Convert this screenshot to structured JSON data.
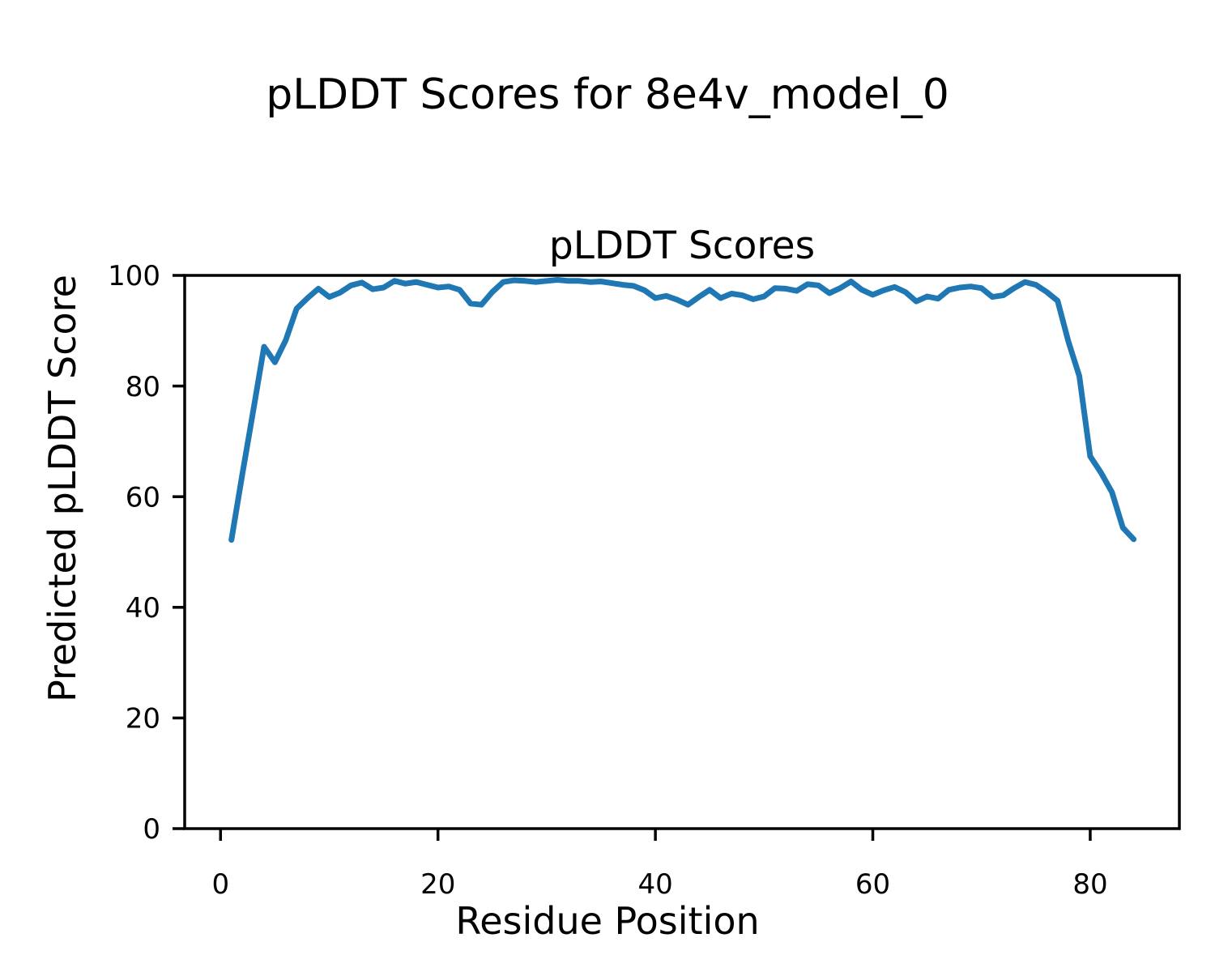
{
  "figure": {
    "suptitle": "pLDDT Scores for 8e4v_model_0"
  },
  "chart_data": {
    "type": "line",
    "title": "pLDDT Scores",
    "xlabel": "Residue Position",
    "ylabel": "Predicted pLDDT Score",
    "xlim": [
      -3.3,
      88.2
    ],
    "ylim": [
      0,
      100
    ],
    "x_ticks": [
      0,
      20,
      40,
      60,
      80
    ],
    "y_ticks": [
      0,
      20,
      40,
      60,
      80,
      100
    ],
    "grid": false,
    "legend_position": "none",
    "line_color": "#1f77b4",
    "series": [
      {
        "name": "pLDDT",
        "x": [
          1,
          2,
          3,
          4,
          5,
          6,
          7,
          8,
          9,
          10,
          11,
          12,
          13,
          14,
          15,
          16,
          17,
          18,
          19,
          20,
          21,
          22,
          23,
          24,
          25,
          26,
          27,
          28,
          29,
          30,
          31,
          32,
          33,
          34,
          35,
          36,
          37,
          38,
          39,
          40,
          41,
          42,
          43,
          44,
          45,
          46,
          47,
          48,
          49,
          50,
          51,
          52,
          53,
          54,
          55,
          56,
          57,
          58,
          59,
          60,
          61,
          62,
          63,
          64,
          65,
          66,
          67,
          68,
          69,
          70,
          71,
          72,
          73,
          74,
          75,
          76,
          77,
          78,
          79,
          80,
          81,
          82,
          83,
          84
        ],
        "values": [
          52.2,
          64.0,
          75.5,
          87.1,
          84.3,
          88.3,
          94.0,
          95.9,
          97.6,
          96.1,
          96.9,
          98.2,
          98.7,
          97.5,
          97.8,
          99.0,
          98.5,
          98.8,
          98.3,
          97.8,
          98.0,
          97.4,
          94.9,
          94.7,
          97.0,
          98.8,
          99.1,
          99.0,
          98.8,
          99.0,
          99.2,
          99.0,
          99.0,
          98.8,
          98.9,
          98.6,
          98.3,
          98.1,
          97.3,
          95.9,
          96.3,
          95.6,
          94.7,
          96.1,
          97.4,
          95.9,
          96.7,
          96.4,
          95.7,
          96.2,
          97.7,
          97.6,
          97.2,
          98.4,
          98.2,
          96.8,
          97.7,
          98.9,
          97.4,
          96.5,
          97.3,
          97.9,
          97.0,
          95.3,
          96.2,
          95.8,
          97.4,
          97.8,
          98.0,
          97.7,
          96.1,
          96.4,
          97.7,
          98.8,
          98.3,
          97.0,
          95.4,
          88.0,
          81.8,
          67.3,
          64.3,
          60.8,
          54.4,
          52.3
        ]
      }
    ]
  }
}
